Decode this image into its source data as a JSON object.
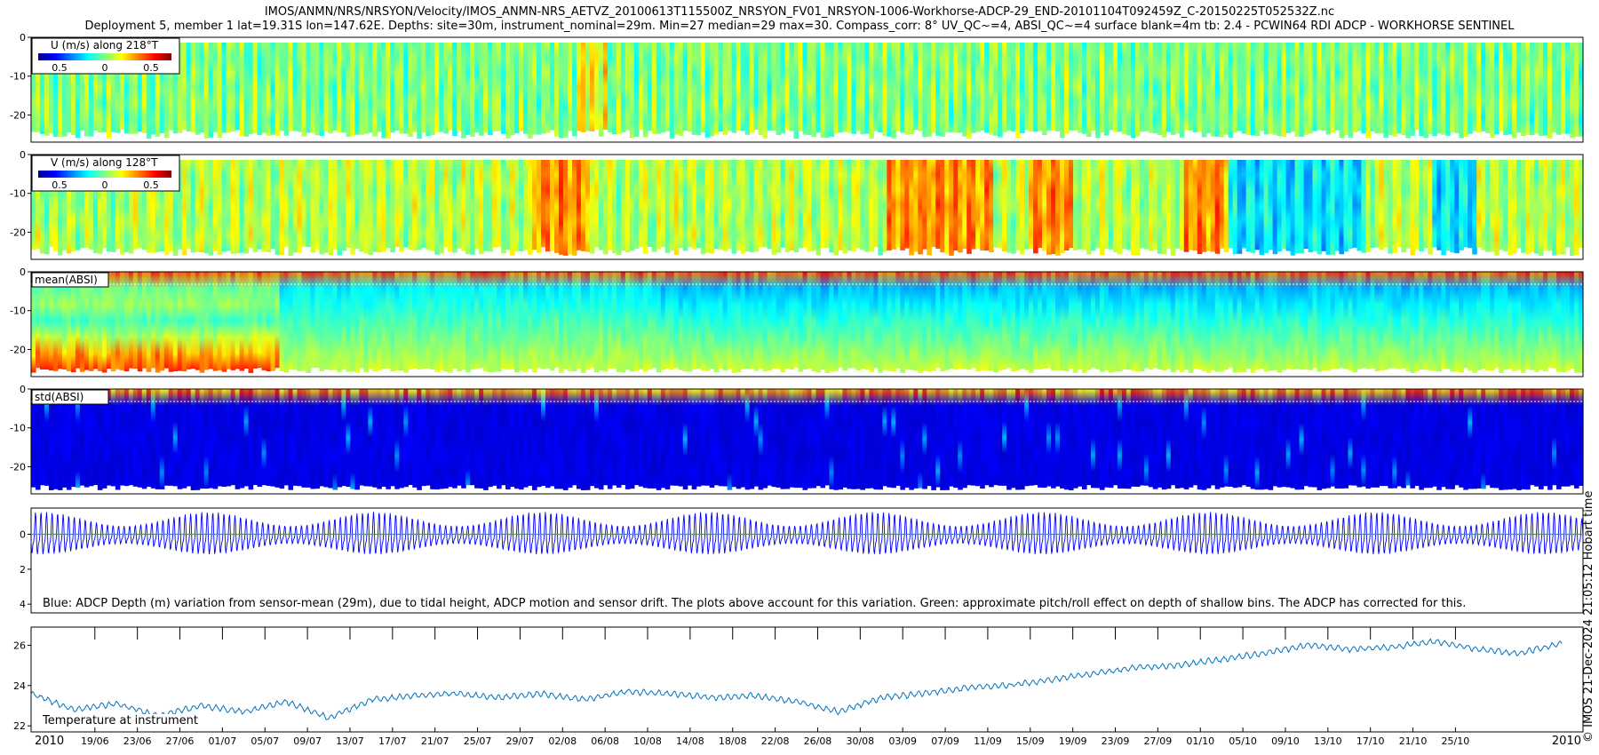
{
  "titles": {
    "line1": "IMOS/ANMN/NRS/NRSYON/Velocity/IMOS_ANMN-NRS_AETVZ_20100613T115500Z_NRSYON_FV01_NRSYON-1006-Workhorse-ADCP-29_END-20101104T092459Z_C-20150225T052532Z.nc",
    "line2": "Deployment 5, member 1 lat=19.31S lon=147.62E. Depths: site=30m, instrument_nominal=29m. Min=27 median=29 max=30. Compass_corr: 8° UV_QC~=4, ABSI_QC~=4 surface blank=4m tb: 2.4 - PCWIN64 RDI ADCP - WORKHORSE SENTINEL"
  },
  "credit": "© IMOS 21-Dec-2024 21:05:12 Hobart time",
  "colors": {
    "jet": [
      "#00008f",
      "#0000ff",
      "#0080ff",
      "#00ffff",
      "#80ff80",
      "#ffff00",
      "#ff8000",
      "#ff0000",
      "#800000"
    ],
    "depth_line": "#0000ff",
    "pitch_line": "#00cc00",
    "temp_line": "#0072bd"
  },
  "chart_data": [
    {
      "type": "heatmap",
      "label": "U (m/s) along 218°T",
      "colorbar_ticks": [
        "0.5",
        "0",
        "0.5"
      ],
      "yticks": [
        "0",
        "-10",
        "-20"
      ],
      "ylim": [
        -27,
        0
      ],
      "dominant": "green (near 0 m/s) with tidal banding"
    },
    {
      "type": "heatmap",
      "label": "V (m/s) along 128°T",
      "colorbar_ticks": [
        "0.5",
        "0",
        "0.5"
      ],
      "yticks": [
        "0",
        "-10",
        "-20"
      ],
      "ylim": [
        -27,
        0
      ],
      "dominant": "green/yellow with orange and blue episodes"
    },
    {
      "type": "heatmap",
      "label": "mean(ABSI)",
      "yticks": [
        "0",
        "-10",
        "-20"
      ],
      "ylim": [
        -27,
        0
      ],
      "dominant": "blue-cyan upper, green lower; yellow/orange near bottom through early July"
    },
    {
      "type": "heatmap",
      "label": "std(ABSI)",
      "yticks": [
        "0",
        "-10",
        "-20"
      ],
      "ylim": [
        -27,
        0
      ],
      "dominant": "dark blue throughout; surface rows orange/yellow"
    },
    {
      "type": "line",
      "yticks": [
        "0",
        "2",
        "4"
      ],
      "ylim": [
        -1.5,
        4.5
      ],
      "annotation": "Blue: ADCP Depth (m) variation from sensor-mean (29m), due to tidal height, ADCP motion and sensor drift. The plots above account for this variation. Green: approximate pitch/roll effect on depth of shallow bins. The ADCP has corrected for this.",
      "series": [
        {
          "description": "tidal depth variation, amplitude ~1 m, spring/neap modulated",
          "spring_peak_amplitude_m": 1.2,
          "neap_amplitude_m": 0.5
        },
        {
          "description": "pitch/roll depth effect",
          "value": 0
        }
      ]
    },
    {
      "type": "line",
      "annotation": "Temperature at instrument",
      "yticks": [
        "22",
        "24",
        "26"
      ],
      "ylim": [
        21.7,
        26.9
      ],
      "x_days_from_2010_06_13": [
        0,
        4,
        8,
        12,
        16,
        20,
        24,
        28,
        32,
        36,
        40,
        44,
        48,
        52,
        56,
        60,
        64,
        68,
        72,
        76,
        80,
        84,
        88,
        92,
        96,
        100,
        104,
        108,
        112,
        116,
        120,
        124,
        128,
        132,
        136,
        140,
        144
      ],
      "y_temperature": [
        23.6,
        22.8,
        23.1,
        22.5,
        23.0,
        22.7,
        23.2,
        22.4,
        23.3,
        23.5,
        23.6,
        23.4,
        23.6,
        23.3,
        23.7,
        23.6,
        23.4,
        23.5,
        23.2,
        22.7,
        23.4,
        23.6,
        23.9,
        24.0,
        24.3,
        24.6,
        24.9,
        25.0,
        25.3,
        25.6,
        26.0,
        25.8,
        25.9,
        26.2,
        25.8,
        25.6,
        26.1
      ],
      "xticks": [
        "19/06",
        "23/06",
        "27/06",
        "01/07",
        "05/07",
        "09/07",
        "13/07",
        "17/07",
        "21/07",
        "25/07",
        "29/07",
        "02/08",
        "06/08",
        "10/08",
        "14/08",
        "18/08",
        "22/08",
        "26/08",
        "30/08",
        "03/09",
        "07/09",
        "11/09",
        "15/09",
        "19/09",
        "23/09",
        "27/09",
        "01/10",
        "05/10",
        "09/10",
        "13/10",
        "17/10",
        "21/10",
        "25/10"
      ],
      "year_left": "2010",
      "year_right": "2010"
    }
  ]
}
